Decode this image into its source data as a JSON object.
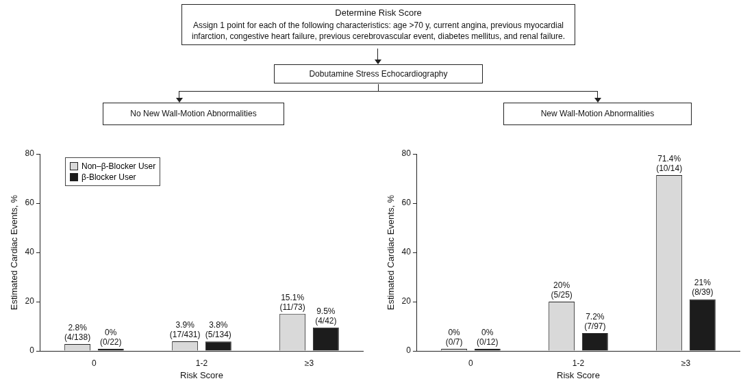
{
  "chart_data": [
    {
      "type": "other",
      "title": "Determine Risk Score",
      "subtitle": "Assign 1 point for each of the following characteristics: age >70 y, current angina, previous myocardial infarction, congestive heart failure, previous cerebrovascular event, diabetes mellitus, and renal failure.",
      "annotations": [
        "Dobutamine Stress Echocardiography"
      ]
    },
    {
      "type": "bar",
      "title": "No New Wall-Motion Abnormalities",
      "categories": [
        "0",
        "1-2",
        "≥3"
      ],
      "xlabel": "Risk Score",
      "ylabel": "Estimated Cardiac Events, %",
      "ylim": [
        0,
        80
      ],
      "yticks": [
        0,
        20,
        40,
        60,
        80
      ],
      "legend": "top left",
      "series": [
        {
          "name": "Non–β-Blocker User",
          "color": "#d9d9d9",
          "values": [
            2.8,
            3.9,
            15.1
          ],
          "value_labels": [
            "2.8% (4/138)",
            "3.9% (17/431)",
            "15.1% (11/73)"
          ]
        },
        {
          "name": "β-Blocker User",
          "color": "#1c1c1c",
          "values": [
            0,
            3.8,
            9.5
          ],
          "value_labels": [
            "0% (0/22)",
            "3.8% (5/134)",
            "9.5% (4/42)"
          ]
        }
      ]
    },
    {
      "type": "bar",
      "title": "New Wall-Motion Abnormalities",
      "categories": [
        "0",
        "1-2",
        "≥3"
      ],
      "xlabel": "Risk Score",
      "ylabel": "Estimated Cardiac Events, %",
      "ylim": [
        0,
        80
      ],
      "yticks": [
        0,
        20,
        40,
        60,
        80
      ],
      "series": [
        {
          "color": "#d9d9d9",
          "values": [
            0,
            20,
            71.4
          ],
          "value_labels": [
            "0% (0/7)",
            "20% (5/25)",
            "71.4% (10/14)"
          ]
        },
        {
          "color": "#1c1c1c",
          "values": [
            0,
            7.2,
            21
          ],
          "value_labels": [
            "0% (0/12)",
            "7.2% (7/97)",
            "21% (8/39)"
          ]
        }
      ]
    }
  ]
}
